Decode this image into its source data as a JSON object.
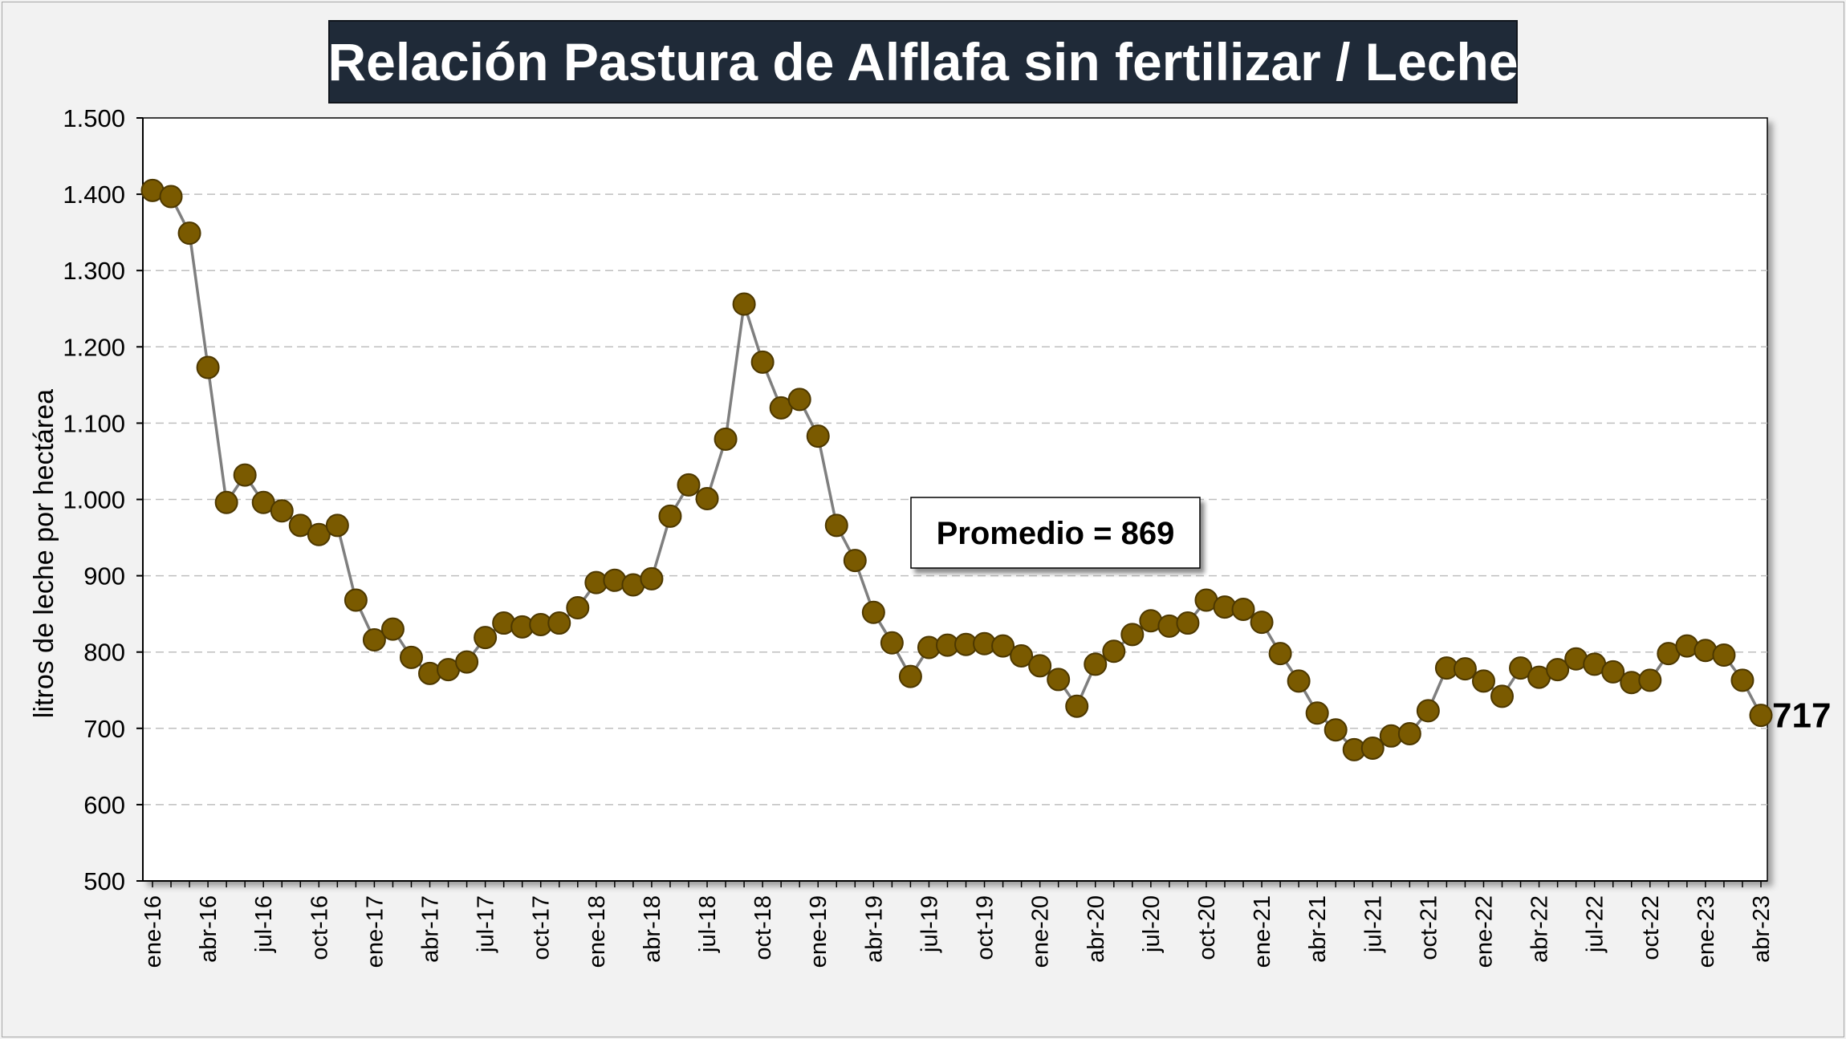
{
  "chart_data": {
    "type": "line",
    "title": "Relación Pastura de Alflafa sin fertilizar / Leche",
    "ylabel": "litros de leche por hectárea",
    "ylim": [
      500,
      1500
    ],
    "yticks": [
      500,
      600,
      700,
      800,
      900,
      1000,
      1100,
      1200,
      1300,
      1400,
      1500
    ],
    "ytick_labels": [
      "500",
      "600",
      "700",
      "800",
      "900",
      "1.000",
      "1.100",
      "1.200",
      "1.300",
      "1.400",
      "1.500"
    ],
    "x_tick_labels": [
      "ene-16",
      "abr-16",
      "jul-16",
      "oct-16",
      "ene-17",
      "abr-17",
      "jul-17",
      "oct-17",
      "ene-18",
      "abr-18",
      "jul-18",
      "oct-18",
      "ene-19",
      "abr-19",
      "jul-19",
      "oct-19",
      "ene-20",
      "abr-20",
      "jul-20",
      "oct-20",
      "ene-21",
      "abr-21",
      "jul-21",
      "oct-21",
      "ene-22",
      "abr-22",
      "jul-22",
      "oct-22",
      "ene-23",
      "abr-23"
    ],
    "x_tick_every": 3,
    "grid": "horizontal dashed",
    "series": [
      {
        "color": "#7a5a00",
        "line_color": "#7f7f7f",
        "values": [
          1405,
          1397,
          1349,
          1173,
          996,
          1032,
          996,
          985,
          966,
          954,
          966,
          868,
          816,
          830,
          793,
          772,
          777,
          787,
          819,
          838,
          833,
          836,
          838,
          858,
          891,
          894,
          888,
          896,
          978,
          1019,
          1001,
          1079,
          1256,
          1180,
          1120,
          1131,
          1083,
          966,
          920,
          852,
          812,
          768,
          806,
          809,
          810,
          811,
          808,
          795,
          782,
          764,
          729,
          784,
          801,
          823,
          841,
          834,
          838,
          868,
          859,
          856,
          839,
          798,
          762,
          720,
          698,
          672,
          674,
          690,
          693,
          723,
          779,
          778,
          762,
          742,
          779,
          767,
          777,
          791,
          784,
          774,
          760,
          763,
          798,
          808,
          802,
          796,
          763,
          717
        ]
      }
    ],
    "annotations": {
      "average_label": "Promedio = 869",
      "last_value_label": "717"
    }
  }
}
